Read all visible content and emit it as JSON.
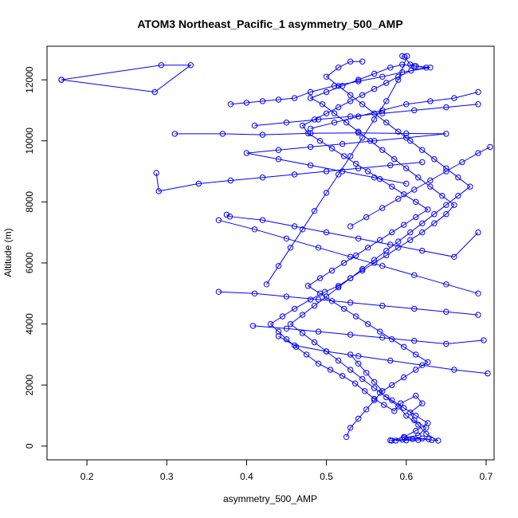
{
  "chart_data": {
    "type": "line",
    "title": "ATOM3 Northeast_Pacific_1 asymmetry_500_AMP",
    "xlabel": "asymmetry_500_AMP",
    "ylabel": "Altitude (m)",
    "xlim": [
      0.15,
      0.71
    ],
    "ylim": [
      -450,
      13100
    ],
    "xticks": [
      0.2,
      0.3,
      0.4,
      0.5,
      0.6,
      0.7
    ],
    "xtick_labels": [
      "0.2",
      "0.3",
      "0.4",
      "0.5",
      "0.6",
      "0.7"
    ],
    "yticks": [
      0,
      2000,
      4000,
      6000,
      8000,
      10000,
      12000
    ],
    "ytick_labels": [
      "0",
      "2000",
      "4000",
      "6000",
      "8000",
      "10000",
      "12000"
    ],
    "grid": false,
    "line_color": "#0000ff",
    "markers": "open-circle",
    "series": [
      {
        "points": [
          [
            0.587,
            180
          ],
          [
            0.6,
            190
          ],
          [
            0.615,
            200
          ],
          [
            0.628,
            230
          ],
          [
            0.598,
            280
          ],
          [
            0.615,
            350
          ],
          [
            0.625,
            600
          ],
          [
            0.61,
            850
          ],
          [
            0.605,
            1100
          ],
          [
            0.62,
            1400
          ],
          [
            0.612,
            1650
          ],
          [
            0.593,
            1400
          ],
          [
            0.585,
            1150
          ],
          [
            0.572,
            1350
          ],
          [
            0.56,
            1550
          ],
          [
            0.548,
            1800
          ],
          [
            0.536,
            2050
          ],
          [
            0.52,
            2300
          ],
          [
            0.505,
            2500
          ],
          [
            0.49,
            2700
          ],
          [
            0.475,
            3000
          ],
          [
            0.462,
            3250
          ],
          [
            0.45,
            3500
          ],
          [
            0.44,
            3750
          ],
          [
            0.43,
            4000
          ],
          [
            0.445,
            4250
          ],
          [
            0.46,
            4500
          ],
          [
            0.48,
            4800
          ],
          [
            0.498,
            5050
          ],
          [
            0.515,
            5250
          ],
          [
            0.53,
            5500
          ],
          [
            0.545,
            5750
          ],
          [
            0.56,
            6000
          ],
          [
            0.575,
            6250
          ],
          [
            0.59,
            6500
          ],
          [
            0.605,
            6750
          ],
          [
            0.62,
            7000
          ],
          [
            0.635,
            7300
          ],
          [
            0.65,
            7600
          ],
          [
            0.66,
            7900
          ],
          [
            0.645,
            8200
          ],
          [
            0.63,
            8500
          ],
          [
            0.615,
            8800
          ],
          [
            0.6,
            9100
          ],
          [
            0.585,
            9400
          ],
          [
            0.57,
            9700
          ],
          [
            0.555,
            10000
          ],
          [
            0.54,
            10300
          ],
          [
            0.525,
            10600
          ],
          [
            0.51,
            10900
          ],
          [
            0.495,
            11200
          ],
          [
            0.48,
            11400
          ],
          [
            0.5,
            11600
          ],
          [
            0.52,
            11800
          ],
          [
            0.54,
            12000
          ],
          [
            0.56,
            12200
          ],
          [
            0.58,
            12400
          ],
          [
            0.595,
            12500
          ],
          [
            0.61,
            12450
          ],
          [
            0.625,
            12400
          ],
          [
            0.606,
            12300
          ],
          [
            0.59,
            12100
          ],
          [
            0.575,
            11900
          ],
          [
            0.56,
            11700
          ],
          [
            0.545,
            11500
          ],
          [
            0.53,
            11300
          ],
          [
            0.515,
            11100
          ],
          [
            0.5,
            10900
          ],
          [
            0.485,
            10700
          ],
          [
            0.47,
            10500
          ],
          [
            0.477,
            10250
          ],
          [
            0.492,
            10000
          ],
          [
            0.507,
            9750
          ],
          [
            0.522,
            9500
          ],
          [
            0.537,
            9250
          ],
          [
            0.552,
            9000
          ],
          [
            0.567,
            8750
          ],
          [
            0.582,
            8500
          ],
          [
            0.597,
            8250
          ],
          [
            0.612,
            8000
          ],
          [
            0.627,
            7750
          ],
          [
            0.612,
            7500
          ],
          [
            0.597,
            7250
          ],
          [
            0.582,
            7000
          ],
          [
            0.567,
            6750
          ],
          [
            0.552,
            6500
          ],
          [
            0.537,
            6250
          ],
          [
            0.522,
            6000
          ],
          [
            0.507,
            5750
          ],
          [
            0.492,
            5500
          ],
          [
            0.477,
            5250
          ],
          [
            0.492,
            5000
          ],
          [
            0.507,
            4750
          ],
          [
            0.522,
            4500
          ],
          [
            0.537,
            4250
          ],
          [
            0.552,
            4000
          ],
          [
            0.567,
            3750
          ],
          [
            0.582,
            3500
          ],
          [
            0.597,
            3250
          ],
          [
            0.612,
            3000
          ],
          [
            0.627,
            2750
          ],
          [
            0.612,
            2500
          ],
          [
            0.597,
            2250
          ],
          [
            0.582,
            2000
          ],
          [
            0.567,
            1750
          ],
          [
            0.582,
            1500
          ],
          [
            0.597,
            1250
          ],
          [
            0.612,
            1000
          ],
          [
            0.627,
            750
          ],
          [
            0.612,
            500
          ],
          [
            0.597,
            300
          ],
          [
            0.582,
            180
          ]
        ]
      },
      {
        "points": [
          [
            0.58,
            190
          ],
          [
            0.595,
            210
          ],
          [
            0.608,
            230
          ],
          [
            0.62,
            250
          ],
          [
            0.632,
            200
          ],
          [
            0.64,
            180
          ],
          [
            0.625,
            400
          ],
          [
            0.615,
            700
          ],
          [
            0.6,
            1000
          ],
          [
            0.59,
            1300
          ],
          [
            0.575,
            1600
          ],
          [
            0.56,
            1900
          ],
          [
            0.545,
            2200
          ],
          [
            0.53,
            2500
          ],
          [
            0.515,
            2800
          ],
          [
            0.5,
            3100
          ],
          [
            0.485,
            3400
          ],
          [
            0.47,
            3700
          ],
          [
            0.455,
            4000
          ],
          [
            0.47,
            4300
          ],
          [
            0.485,
            4600
          ],
          [
            0.5,
            4900
          ],
          [
            0.515,
            5200
          ],
          [
            0.53,
            5500
          ],
          [
            0.545,
            5800
          ],
          [
            0.56,
            6100
          ],
          [
            0.575,
            6400
          ],
          [
            0.59,
            6700
          ],
          [
            0.605,
            7000
          ],
          [
            0.62,
            7300
          ],
          [
            0.635,
            7600
          ],
          [
            0.65,
            7900
          ],
          [
            0.665,
            8200
          ],
          [
            0.68,
            8500
          ],
          [
            0.665,
            8800
          ],
          [
            0.65,
            9100
          ],
          [
            0.635,
            9400
          ],
          [
            0.62,
            9700
          ],
          [
            0.605,
            10000
          ],
          [
            0.59,
            10300
          ],
          [
            0.575,
            10600
          ],
          [
            0.56,
            10900
          ],
          [
            0.545,
            11200
          ],
          [
            0.53,
            11500
          ],
          [
            0.515,
            11800
          ],
          [
            0.5,
            12100
          ],
          [
            0.515,
            12400
          ],
          [
            0.53,
            12600
          ],
          [
            0.545,
            12600
          ]
        ]
      },
      {
        "points": [
          [
            0.595,
            12780
          ],
          [
            0.598,
            12750
          ],
          [
            0.605,
            12500
          ],
          [
            0.612,
            12450
          ],
          [
            0.63,
            12400
          ],
          [
            0.595,
            12250
          ],
          [
            0.57,
            12100
          ],
          [
            0.54,
            11950
          ],
          [
            0.51,
            11800
          ],
          [
            0.48,
            11600
          ],
          [
            0.46,
            11400
          ],
          [
            0.44,
            11350
          ],
          [
            0.42,
            11300
          ],
          [
            0.4,
            11250
          ],
          [
            0.38,
            11200
          ]
        ]
      },
      {
        "points": [
          [
            0.168,
            12000
          ],
          [
            0.285,
            11600
          ],
          [
            0.33,
            12480
          ],
          [
            0.293,
            12480
          ],
          [
            0.168,
            12000
          ]
        ]
      },
      {
        "points": [
          [
            0.31,
            10230
          ],
          [
            0.37,
            10230
          ],
          [
            0.42,
            10200
          ],
          [
            0.48,
            10250
          ],
          [
            0.54,
            10260
          ],
          [
            0.6,
            10240
          ],
          [
            0.65,
            10230
          ],
          [
            0.6,
            10100
          ],
          [
            0.56,
            10000
          ],
          [
            0.52,
            9900
          ],
          [
            0.48,
            9800
          ],
          [
            0.44,
            9700
          ],
          [
            0.4,
            9600
          ],
          [
            0.44,
            9400
          ],
          [
            0.48,
            9200
          ],
          [
            0.52,
            9000
          ],
          [
            0.56,
            8800
          ],
          [
            0.6,
            8600
          ]
        ]
      },
      {
        "points": [
          [
            0.287,
            8950
          ],
          [
            0.29,
            8350
          ],
          [
            0.34,
            8600
          ],
          [
            0.38,
            8700
          ],
          [
            0.42,
            8800
          ],
          [
            0.46,
            8900
          ],
          [
            0.5,
            9000
          ],
          [
            0.54,
            9100
          ],
          [
            0.58,
            9200
          ],
          [
            0.62,
            9300
          ]
        ]
      },
      {
        "points": [
          [
            0.375,
            7580
          ],
          [
            0.379,
            7520
          ],
          [
            0.42,
            7400
          ],
          [
            0.46,
            7200
          ],
          [
            0.5,
            7000
          ],
          [
            0.54,
            6800
          ],
          [
            0.58,
            6600
          ],
          [
            0.62,
            6400
          ],
          [
            0.66,
            6200
          ],
          [
            0.69,
            7000
          ]
        ]
      },
      {
        "points": [
          [
            0.365,
            7400
          ],
          [
            0.41,
            7100
          ],
          [
            0.45,
            6800
          ],
          [
            0.49,
            6500
          ],
          [
            0.53,
            6200
          ],
          [
            0.57,
            5900
          ],
          [
            0.61,
            5600
          ],
          [
            0.65,
            5300
          ],
          [
            0.69,
            5000
          ]
        ]
      },
      {
        "points": [
          [
            0.365,
            5050
          ],
          [
            0.41,
            5000
          ],
          [
            0.45,
            4900
          ],
          [
            0.49,
            4800
          ],
          [
            0.53,
            4700
          ],
          [
            0.57,
            4600
          ],
          [
            0.61,
            4500
          ],
          [
            0.65,
            4400
          ],
          [
            0.69,
            4300
          ]
        ]
      },
      {
        "points": [
          [
            0.408,
            3940
          ],
          [
            0.45,
            3850
          ],
          [
            0.49,
            3750
          ],
          [
            0.53,
            3650
          ],
          [
            0.57,
            3550
          ],
          [
            0.61,
            3450
          ],
          [
            0.65,
            3350
          ],
          [
            0.697,
            3470
          ]
        ]
      },
      {
        "points": [
          [
            0.702,
            2380
          ],
          [
            0.66,
            2500
          ],
          [
            0.62,
            2650
          ],
          [
            0.58,
            2800
          ],
          [
            0.54,
            2950
          ],
          [
            0.5,
            3100
          ],
          [
            0.46,
            3300
          ],
          [
            0.44,
            3600
          ]
        ]
      },
      {
        "points": [
          [
            0.601,
            12780
          ],
          [
            0.59,
            12000
          ],
          [
            0.575,
            11300
          ],
          [
            0.56,
            10700
          ],
          [
            0.545,
            10100
          ],
          [
            0.53,
            9500
          ],
          [
            0.515,
            8900
          ],
          [
            0.5,
            8300
          ],
          [
            0.485,
            7700
          ],
          [
            0.47,
            7100
          ],
          [
            0.455,
            6500
          ],
          [
            0.44,
            5900
          ],
          [
            0.425,
            5300
          ]
        ]
      },
      {
        "points": [
          [
            0.69,
            11200
          ],
          [
            0.65,
            11100
          ],
          [
            0.61,
            11000
          ],
          [
            0.57,
            10900
          ],
          [
            0.53,
            10800
          ],
          [
            0.49,
            10700
          ],
          [
            0.45,
            10600
          ],
          [
            0.41,
            10500
          ]
        ]
      },
      {
        "points": [
          [
            0.705,
            9800
          ],
          [
            0.69,
            9600
          ],
          [
            0.67,
            9300
          ],
          [
            0.65,
            9000
          ],
          [
            0.63,
            8700
          ],
          [
            0.61,
            8400
          ],
          [
            0.59,
            8100
          ],
          [
            0.57,
            7800
          ],
          [
            0.55,
            7500
          ],
          [
            0.53,
            7200
          ]
        ]
      },
      {
        "points": [
          [
            0.69,
            11600
          ],
          [
            0.66,
            11400
          ],
          [
            0.63,
            11300
          ],
          [
            0.6,
            11200
          ],
          [
            0.57,
            11000
          ],
          [
            0.54,
            10800
          ],
          [
            0.51,
            10600
          ],
          [
            0.48,
            10400
          ]
        ]
      },
      {
        "points": [
          [
            0.525,
            300
          ],
          [
            0.53,
            600
          ],
          [
            0.54,
            900
          ],
          [
            0.55,
            1200
          ],
          [
            0.56,
            1500
          ],
          [
            0.57,
            1800
          ],
          [
            0.56,
            2100
          ],
          [
            0.55,
            2400
          ],
          [
            0.54,
            2700
          ],
          [
            0.53,
            3000
          ]
        ]
      }
    ]
  }
}
